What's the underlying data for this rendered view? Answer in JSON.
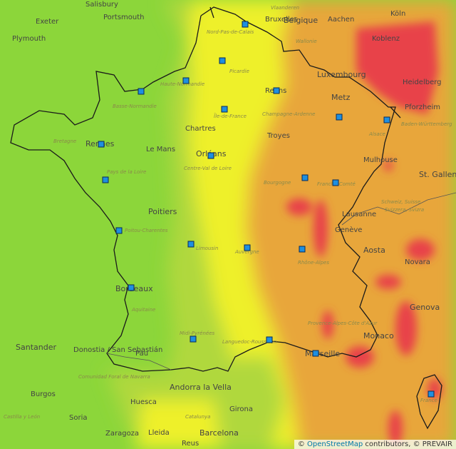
{
  "map": {
    "colors": {
      "green": "#8cd63a",
      "lightgreen": "#b0d83c",
      "yellow": "#eef02a",
      "orange": "#e8a63a",
      "red": "#e8424a"
    },
    "labels": [
      {
        "text": "Salisbury",
        "size": "city"
      },
      {
        "text": "Portsmouth",
        "size": "city"
      },
      {
        "text": "Exeter",
        "size": "city"
      },
      {
        "text": "Plymouth",
        "size": "city"
      },
      {
        "text": "Vlaanderen",
        "size": "region"
      },
      {
        "text": "Bruxelles",
        "size": "city"
      },
      {
        "text": "Belgique",
        "size": "big"
      },
      {
        "text": "Aachen",
        "size": "city"
      },
      {
        "text": "Köln",
        "size": "city"
      },
      {
        "text": "Wallonie",
        "size": "region"
      },
      {
        "text": "Koblenz",
        "size": "city"
      },
      {
        "text": "Luxembourg",
        "size": "big"
      },
      {
        "text": "Metz",
        "size": "big"
      },
      {
        "text": "Heidelberg",
        "size": "city"
      },
      {
        "text": "Pforzheim",
        "size": "city"
      },
      {
        "text": "Baden-Württemberg",
        "size": "region"
      },
      {
        "text": "Nord-Pas-de-Calais",
        "size": "region"
      },
      {
        "text": "Picardie",
        "size": "region"
      },
      {
        "text": "Haute-Normandie",
        "size": "region"
      },
      {
        "text": "Basse-Normandie",
        "size": "region"
      },
      {
        "text": "Reims",
        "size": "city"
      },
      {
        "text": "Champagne-Ardenne",
        "size": "region"
      },
      {
        "text": "Île-de-France",
        "size": "region"
      },
      {
        "text": "Alsace",
        "size": "region"
      },
      {
        "text": "Chartres",
        "size": "city"
      },
      {
        "text": "Troyes",
        "size": "city"
      },
      {
        "text": "Bretagne",
        "size": "region"
      },
      {
        "text": "Rennes",
        "size": "big"
      },
      {
        "text": "Le Mans",
        "size": "city"
      },
      {
        "text": "Orléans",
        "size": "big"
      },
      {
        "text": "Centre-Val de Loire",
        "size": "region"
      },
      {
        "text": "Mulhouse",
        "size": "city"
      },
      {
        "text": "Pays de la Loire",
        "size": "region"
      },
      {
        "text": "Bourgogne",
        "size": "region"
      },
      {
        "text": "Franche-Comté",
        "size": "region"
      },
      {
        "text": "St. Gallen",
        "size": "big"
      },
      {
        "text": "Poitiers",
        "size": "big"
      },
      {
        "text": "Lausanne",
        "size": "city"
      },
      {
        "text": "Schweiz, Suisse",
        "size": "region"
      },
      {
        "text": "Svizzera, Svizra",
        "size": "region"
      },
      {
        "text": "Poitou-Charentes",
        "size": "region"
      },
      {
        "text": "Genève",
        "size": "city"
      },
      {
        "text": "Limousin",
        "size": "region"
      },
      {
        "text": "Auvergne",
        "size": "region"
      },
      {
        "text": "Aosta",
        "size": "big"
      },
      {
        "text": "Rhône-Alpes",
        "size": "region"
      },
      {
        "text": "Novara",
        "size": "city"
      },
      {
        "text": "Bordeaux",
        "size": "big"
      },
      {
        "text": "Aquitaine",
        "size": "region"
      },
      {
        "text": "Genova",
        "size": "big"
      },
      {
        "text": "Provence-Alpes-Côte d'Azur",
        "size": "region"
      },
      {
        "text": "Monaco",
        "size": "big"
      },
      {
        "text": "Midi-Pyrénées",
        "size": "region"
      },
      {
        "text": "Languedoc-Roussillon",
        "size": "region"
      },
      {
        "text": "Santander",
        "size": "big"
      },
      {
        "text": "Donostia / San Sebastián",
        "size": "city"
      },
      {
        "text": "Pau",
        "size": "city"
      },
      {
        "text": "Marseille",
        "size": "big"
      },
      {
        "text": "Comunidad Foral de Navarra",
        "size": "region"
      },
      {
        "text": "Andorra la Vella",
        "size": "big"
      },
      {
        "text": "Burgos",
        "size": "city"
      },
      {
        "text": "Huesca",
        "size": "city"
      },
      {
        "text": "Girona",
        "size": "city"
      },
      {
        "text": "Castilla y León",
        "size": "region"
      },
      {
        "text": "Catalunya",
        "size": "region"
      },
      {
        "text": "Soria",
        "size": "city"
      },
      {
        "text": "Zaragoza",
        "size": "city"
      },
      {
        "text": "Barcelona",
        "size": "big"
      },
      {
        "text": "Lleida",
        "size": "city"
      },
      {
        "text": "Reus",
        "size": "city"
      },
      {
        "text": "France",
        "size": "region"
      }
    ],
    "attribution": {
      "prefix": "© ",
      "link": "OpenStreetMap",
      "suffix": " contributors, © PREVAIR"
    }
  }
}
